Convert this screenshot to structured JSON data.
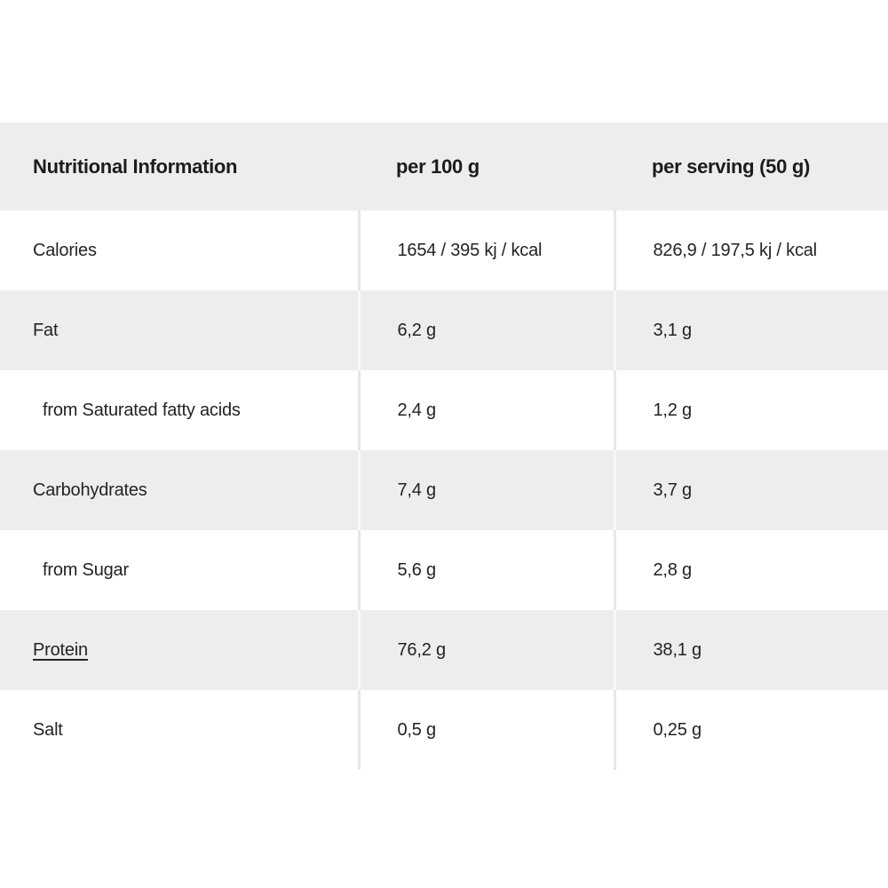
{
  "table": {
    "header": {
      "title": "Nutritional Information",
      "per100": "per 100 g",
      "serving": "per serving (50 g)"
    },
    "rows": [
      {
        "label": "Calories",
        "per100": "1654 / 395 kj / kcal",
        "serving": "826,9 / 197,5 kj / kcal",
        "indent": false,
        "link": false
      },
      {
        "label": "Fat",
        "per100": "6,2 g",
        "serving": "3,1 g",
        "indent": false,
        "link": false
      },
      {
        "label": "from Saturated fatty acids",
        "per100": "2,4 g",
        "serving": "1,2 g",
        "indent": true,
        "link": false
      },
      {
        "label": "Carbohydrates",
        "per100": "7,4 g",
        "serving": "3,7 g",
        "indent": false,
        "link": false
      },
      {
        "label": "from Sugar",
        "per100": "5,6 g",
        "serving": "2,8 g",
        "indent": true,
        "link": false
      },
      {
        "label": "Protein",
        "per100": "76,2 g",
        "serving": "38,1 g",
        "indent": false,
        "link": true
      },
      {
        "label": "Salt",
        "per100": "0,5 g",
        "serving": "0,25 g",
        "indent": false,
        "link": false
      }
    ]
  },
  "colors": {
    "row_alt_bg": "#ededee",
    "header_bg": "#ededee",
    "text": "#232325",
    "separator_on_white": "#e7e7e8",
    "separator_on_gray": "#f8f8f8",
    "page_bg": "#ffffff"
  }
}
